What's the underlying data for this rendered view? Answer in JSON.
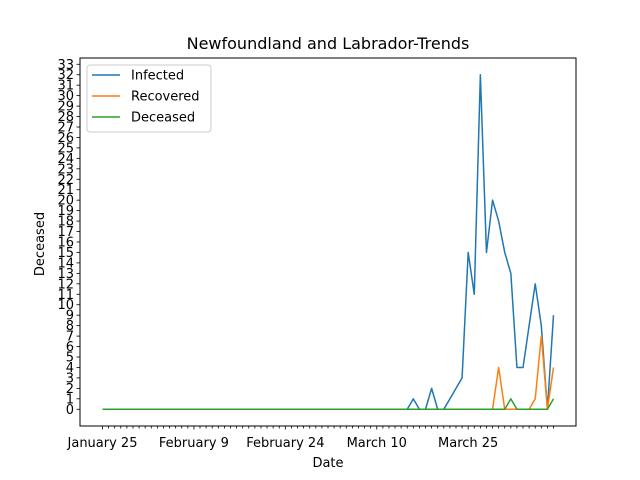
{
  "chart_data": {
    "type": "line",
    "title": "Newfoundland and Labrador-Trends",
    "xlabel": "Date",
    "ylabel": "Deceased",
    "x": [
      "Jan 25",
      "Jan 26",
      "Jan 27",
      "Jan 28",
      "Jan 29",
      "Jan 30",
      "Jan 31",
      "Feb 1",
      "Feb 2",
      "Feb 3",
      "Feb 4",
      "Feb 5",
      "Feb 6",
      "Feb 7",
      "Feb 8",
      "Feb 9",
      "Feb 10",
      "Feb 11",
      "Feb 12",
      "Feb 13",
      "Feb 14",
      "Feb 15",
      "Feb 16",
      "Feb 17",
      "Feb 18",
      "Feb 19",
      "Feb 20",
      "Feb 21",
      "Feb 22",
      "Feb 23",
      "Feb 24",
      "Feb 25",
      "Feb 26",
      "Feb 27",
      "Feb 28",
      "Feb 29",
      "Mar 1",
      "Mar 2",
      "Mar 3",
      "Mar 4",
      "Mar 5",
      "Mar 6",
      "Mar 7",
      "Mar 8",
      "Mar 9",
      "Mar 10",
      "Mar 11",
      "Mar 12",
      "Mar 13",
      "Mar 14",
      "Mar 15",
      "Mar 16",
      "Mar 17",
      "Mar 18",
      "Mar 19",
      "Mar 20",
      "Mar 21",
      "Mar 22",
      "Mar 23",
      "Mar 24",
      "Mar 25",
      "Mar 26",
      "Mar 27",
      "Mar 28",
      "Mar 29",
      "Mar 30",
      "Mar 31",
      "Apr 1",
      "Apr 2",
      "Apr 3",
      "Apr 4",
      "Apr 5",
      "Apr 6",
      "Apr 7",
      "Apr 8"
    ],
    "xtick_labels": [
      {
        "index": 0,
        "label": "January 25"
      },
      {
        "index": 15,
        "label": "February 9"
      },
      {
        "index": 30,
        "label": "February 24"
      },
      {
        "index": 45,
        "label": "March 10"
      },
      {
        "index": 60,
        "label": "March 25"
      }
    ],
    "series": [
      {
        "name": "Infected",
        "color": "#1f77b4",
        "values": [
          0,
          0,
          0,
          0,
          0,
          0,
          0,
          0,
          0,
          0,
          0,
          0,
          0,
          0,
          0,
          0,
          0,
          0,
          0,
          0,
          0,
          0,
          0,
          0,
          0,
          0,
          0,
          0,
          0,
          0,
          0,
          0,
          0,
          0,
          0,
          0,
          0,
          0,
          0,
          0,
          0,
          0,
          0,
          0,
          0,
          0,
          0,
          0,
          0,
          0,
          0,
          1,
          0,
          0,
          2,
          0,
          0,
          1,
          2,
          3,
          15,
          11,
          32,
          15,
          20,
          18,
          15,
          13,
          4,
          4,
          8,
          12,
          8,
          0,
          9
        ]
      },
      {
        "name": "Recovered",
        "color": "#ff7f0e",
        "values": [
          0,
          0,
          0,
          0,
          0,
          0,
          0,
          0,
          0,
          0,
          0,
          0,
          0,
          0,
          0,
          0,
          0,
          0,
          0,
          0,
          0,
          0,
          0,
          0,
          0,
          0,
          0,
          0,
          0,
          0,
          0,
          0,
          0,
          0,
          0,
          0,
          0,
          0,
          0,
          0,
          0,
          0,
          0,
          0,
          0,
          0,
          0,
          0,
          0,
          0,
          0,
          0,
          0,
          0,
          0,
          0,
          0,
          0,
          0,
          0,
          0,
          0,
          0,
          0,
          0,
          4,
          0,
          0,
          0,
          0,
          0,
          1,
          7,
          0,
          4
        ]
      },
      {
        "name": "Deceased",
        "color": "#2ca02c",
        "values": [
          0,
          0,
          0,
          0,
          0,
          0,
          0,
          0,
          0,
          0,
          0,
          0,
          0,
          0,
          0,
          0,
          0,
          0,
          0,
          0,
          0,
          0,
          0,
          0,
          0,
          0,
          0,
          0,
          0,
          0,
          0,
          0,
          0,
          0,
          0,
          0,
          0,
          0,
          0,
          0,
          0,
          0,
          0,
          0,
          0,
          0,
          0,
          0,
          0,
          0,
          0,
          0,
          0,
          0,
          0,
          0,
          0,
          0,
          0,
          0,
          0,
          0,
          0,
          0,
          0,
          0,
          0,
          1,
          0,
          0,
          0,
          0,
          0,
          0,
          1
        ]
      }
    ],
    "ylim": [
      -1.6,
      33.6
    ],
    "yticks": [
      0,
      1,
      2,
      3,
      4,
      5,
      6,
      7,
      8,
      9,
      10,
      11,
      12,
      13,
      14,
      15,
      16,
      17,
      18,
      19,
      20,
      21,
      22,
      23,
      24,
      25,
      26,
      27,
      28,
      29,
      30,
      31,
      32,
      33
    ],
    "grid": false,
    "legend_position": "top-left"
  }
}
